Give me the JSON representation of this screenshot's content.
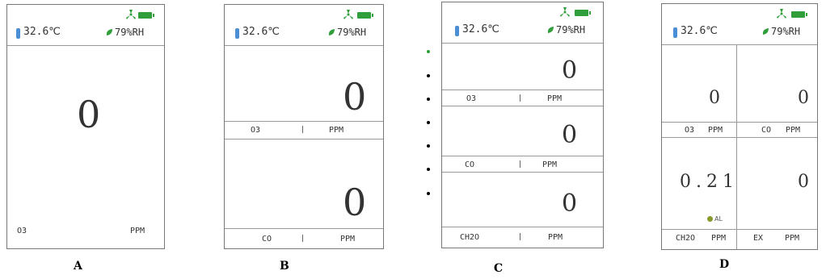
{
  "status": {
    "temperature": "32.6℃",
    "humidity": "79%RH"
  },
  "panel_a": {
    "value": "0",
    "gas": "O3",
    "unit": "PPM",
    "caption": "A"
  },
  "panel_b": {
    "rows": [
      {
        "value": "0",
        "gas": "O3",
        "unit": "PPM"
      },
      {
        "value": "0",
        "gas": "CO",
        "unit": "PPM"
      }
    ],
    "caption": "B"
  },
  "panel_c": {
    "rows": [
      {
        "value": "0",
        "gas": "O3",
        "unit": "PPM"
      },
      {
        "value": "0",
        "gas": "CO",
        "unit": "PPM"
      },
      {
        "value": "0",
        "gas": "CH2O",
        "unit": "PPM"
      }
    ],
    "caption": "C",
    "pager_count": 7,
    "pager_active": 0
  },
  "panel_d": {
    "cells": [
      {
        "value": "0",
        "gas": "O3",
        "unit": "PPM"
      },
      {
        "value": "0",
        "gas": "CO",
        "unit": "PPM"
      },
      {
        "value": "0.21",
        "gas": "CH2O",
        "unit": "PPM",
        "alarm": "AL"
      },
      {
        "value": "0",
        "gas": "EX",
        "unit": "PPM"
      }
    ],
    "caption": "D"
  },
  "colors": {
    "accent": "#2f9e3b",
    "thermometer": "#4a8fd6",
    "border": "#777777"
  },
  "icons": [
    "fan-icon",
    "battery-icon",
    "thermometer-icon",
    "humidity-leaf-icon",
    "alarm-icon"
  ]
}
